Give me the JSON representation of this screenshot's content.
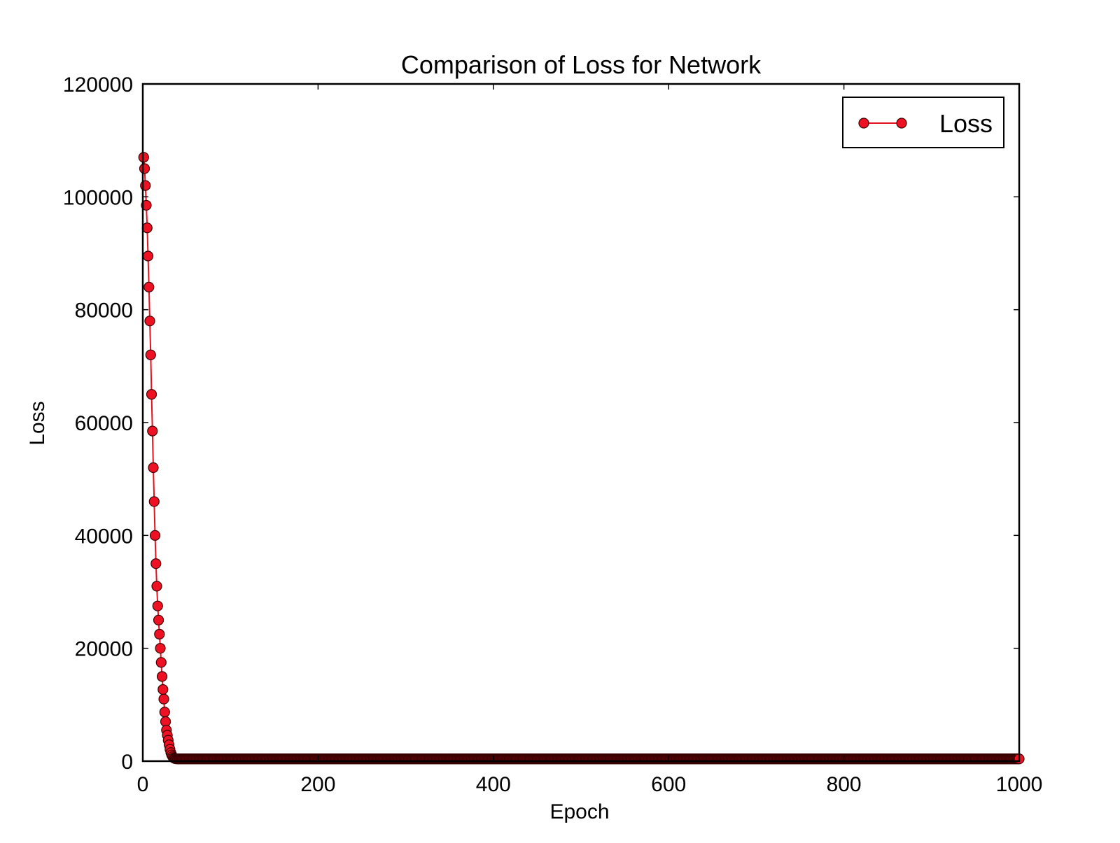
{
  "chart_data": {
    "type": "line",
    "title": "Comparison of Loss for Network",
    "xlabel": "Epoch",
    "ylabel": "Loss",
    "xlim": [
      0,
      1000
    ],
    "ylim": [
      0,
      120000
    ],
    "x_ticks": [
      0,
      200,
      400,
      600,
      800,
      1000
    ],
    "y_ticks": [
      0,
      20000,
      40000,
      60000,
      80000,
      100000,
      120000
    ],
    "x_tick_labels": [
      "0",
      "200",
      "400",
      "600",
      "800",
      "1000"
    ],
    "y_tick_labels": [
      "0",
      "20000",
      "40000",
      "60000",
      "80000",
      "100000",
      "120000"
    ],
    "grid": false,
    "legend": {
      "position": "top-right",
      "entries": [
        "Loss"
      ]
    },
    "colors": {
      "line": "#e8101e",
      "marker_fill": "#ee1124",
      "marker_edge": "#3a0000",
      "axes": "#000000"
    },
    "series": [
      {
        "name": "Loss",
        "x": [
          1,
          2,
          3,
          4,
          5,
          6,
          7,
          8,
          9,
          10,
          11,
          12,
          13,
          14,
          15,
          16,
          17,
          18,
          19,
          20,
          21,
          22,
          23,
          24,
          25,
          26,
          27,
          28,
          29,
          30,
          31,
          32,
          33,
          34,
          35,
          36,
          37,
          38,
          39,
          40,
          41,
          42,
          43,
          44,
          45,
          46,
          47,
          48,
          49,
          50
        ],
        "y": [
          107000,
          105000,
          102000,
          98500,
          94500,
          89500,
          84000,
          78000,
          72000,
          65000,
          58500,
          52000,
          46000,
          40000,
          35000,
          31000,
          27500,
          25000,
          22500,
          20000,
          17500,
          15000,
          12700,
          11000,
          8700,
          7000,
          5500,
          4600,
          3700,
          2900,
          2100,
          1500,
          1100,
          800,
          600,
          500,
          450,
          420,
          410,
          400,
          400,
          400,
          400,
          400,
          400,
          400,
          400,
          400,
          400,
          400
        ],
        "tail": {
          "x_start": 51,
          "x_end": 1000,
          "y": 400
        }
      }
    ]
  }
}
